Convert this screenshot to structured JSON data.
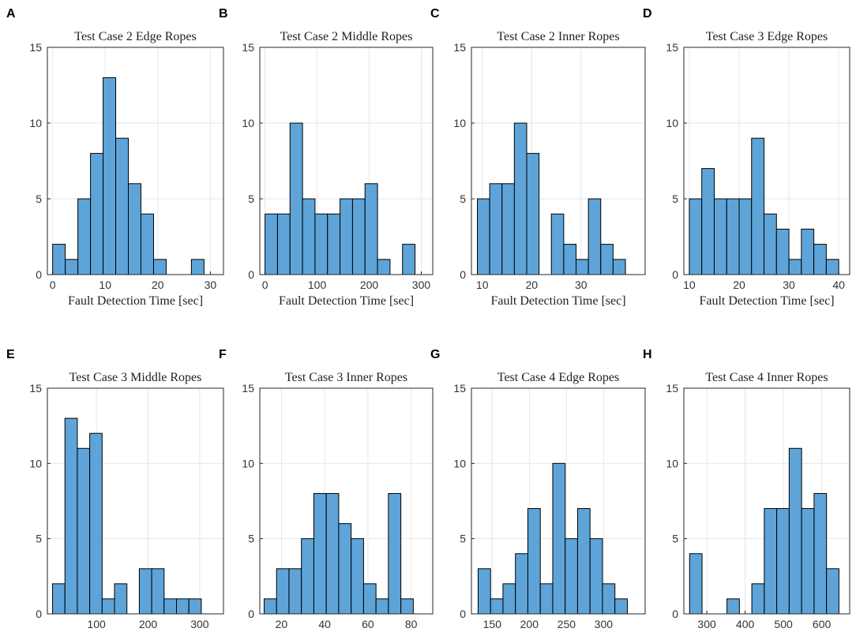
{
  "chart_data": [
    {
      "type": "histogram",
      "panel_label": "A",
      "title": "Test Case 2 Edge Ropes",
      "x_label": "Fault Detection Time [sec]",
      "color": "#5ea4d8",
      "grid": true,
      "bins": [
        0,
        2.4,
        4.8,
        7.2,
        9.6,
        12,
        14.4,
        16.8,
        19.2,
        21.6,
        24,
        26.4,
        28.8
      ],
      "values": [
        2,
        1,
        5,
        8,
        13,
        9,
        6,
        4,
        1,
        0,
        0,
        1
      ],
      "xlim": [
        -1,
        32.5
      ],
      "xticks": [
        0,
        10,
        20,
        30
      ],
      "ylim": [
        0,
        15
      ],
      "yticks": [
        0,
        5,
        10,
        15
      ]
    },
    {
      "type": "histogram",
      "panel_label": "B",
      "title": "Test Case 2 Middle Ropes",
      "x_label": "Fault Detection Time [sec]",
      "color": "#5ea4d8",
      "grid": true,
      "bins": [
        0,
        24,
        48,
        72,
        96,
        120,
        144,
        168,
        192,
        216,
        240,
        264,
        288
      ],
      "values": [
        4,
        4,
        10,
        5,
        4,
        4,
        5,
        5,
        6,
        1,
        0,
        2
      ],
      "xlim": [
        -10,
        322
      ],
      "xticks": [
        0,
        100,
        200,
        300
      ],
      "ylim": [
        0,
        15
      ],
      "yticks": [
        0,
        5,
        10,
        15
      ]
    },
    {
      "type": "histogram",
      "panel_label": "C",
      "title": "Test Case 2 Inner Ropes",
      "x_label": "Fault Detection Time [sec]",
      "color": "#5ea4d8",
      "grid": true,
      "bins": [
        9,
        11.5,
        14,
        16.5,
        19,
        21.5,
        24,
        26.5,
        29,
        31.5,
        34,
        36.5,
        39
      ],
      "values": [
        5,
        6,
        6,
        10,
        8,
        0,
        4,
        2,
        1,
        5,
        2,
        1
      ],
      "xlim": [
        7.8,
        43
      ],
      "xticks": [
        10,
        20,
        30
      ],
      "ylim": [
        0,
        15
      ],
      "yticks": [
        0,
        5,
        10,
        15
      ]
    },
    {
      "type": "histogram",
      "panel_label": "D",
      "title": "Test Case 3 Edge Ropes",
      "x_label": "Fault Detection Time [sec]",
      "color": "#5ea4d8",
      "grid": true,
      "bins": [
        10,
        12.5,
        15,
        17.5,
        20,
        22.5,
        25,
        27.5,
        30,
        32.5,
        35,
        37.5,
        40
      ],
      "values": [
        5,
        7,
        5,
        5,
        5,
        9,
        4,
        3,
        1,
        3,
        2,
        1
      ],
      "xlim": [
        8.9,
        42.2
      ],
      "xticks": [
        10,
        20,
        30,
        40
      ],
      "ylim": [
        0,
        15
      ],
      "yticks": [
        0,
        5,
        10,
        15
      ]
    },
    {
      "type": "histogram",
      "panel_label": "E",
      "title": "Test Case 3 Middle Ropes",
      "x_label": "Fault Detection Time [sec]",
      "color": "#5ea4d8",
      "grid": true,
      "bins": [
        15,
        39,
        63,
        87,
        111,
        135,
        159,
        183,
        207,
        231,
        255,
        279,
        303
      ],
      "values": [
        2,
        13,
        11,
        12,
        1,
        2,
        0,
        3,
        3,
        1,
        1,
        1
      ],
      "xlim": [
        5,
        346
      ],
      "xticks": [
        100,
        200,
        300
      ],
      "ylim": [
        0,
        15
      ],
      "yticks": [
        0,
        5,
        10,
        15
      ]
    },
    {
      "type": "histogram",
      "panel_label": "F",
      "title": "Test Case 3 Inner Ropes",
      "x_label": "Fault Detection Time [sec]",
      "color": "#5ea4d8",
      "grid": true,
      "bins": [
        12,
        17.75,
        23.5,
        29.25,
        35,
        40.75,
        46.5,
        52.25,
        58,
        63.75,
        69.5,
        75.25,
        81
      ],
      "values": [
        1,
        3,
        3,
        5,
        8,
        8,
        6,
        5,
        2,
        1,
        8,
        1
      ],
      "xlim": [
        10,
        90
      ],
      "xticks": [
        20,
        40,
        60,
        80
      ],
      "ylim": [
        0,
        15
      ],
      "yticks": [
        0,
        5,
        10,
        15
      ]
    },
    {
      "type": "histogram",
      "panel_label": "G",
      "title": "Test Case 4 Edge Ropes",
      "x_label": "Fault Detection Time [sec]",
      "color": "#5ea4d8",
      "grid": true,
      "bins": [
        131,
        147.75,
        164.5,
        181.25,
        198,
        214.75,
        231.5,
        248.25,
        265,
        281.75,
        298.5,
        315.25,
        332
      ],
      "values": [
        3,
        1,
        2,
        4,
        7,
        2,
        10,
        5,
        7,
        5,
        2,
        1
      ],
      "xlim": [
        122,
        356
      ],
      "xticks": [
        150,
        200,
        250,
        300
      ],
      "ylim": [
        0,
        15
      ],
      "yticks": [
        0,
        5,
        10,
        15
      ]
    },
    {
      "type": "histogram",
      "panel_label": "H",
      "title": "Test Case 4 Inner Ropes",
      "x_label": "Fault Detection Time [sec]",
      "color": "#5ea4d8",
      "grid": true,
      "bins": [
        255,
        287.5,
        320,
        352.5,
        385,
        417.5,
        450,
        482.5,
        515,
        547.5,
        580,
        612.5,
        645
      ],
      "values": [
        4,
        0,
        0,
        1,
        0,
        2,
        7,
        7,
        11,
        7,
        8,
        3
      ],
      "xlim": [
        240,
        673
      ],
      "xticks": [
        300,
        400,
        500,
        600
      ],
      "ylim": [
        0,
        15
      ],
      "yticks": [
        0,
        5,
        10,
        15
      ]
    }
  ]
}
